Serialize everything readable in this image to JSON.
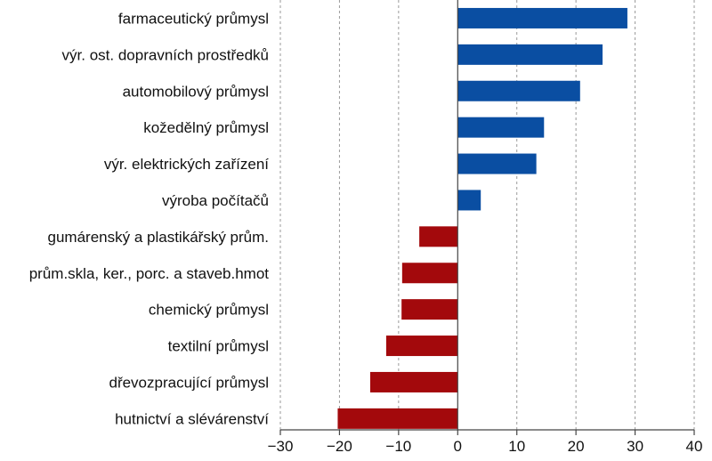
{
  "chart_data": {
    "type": "bar",
    "orientation": "horizontal",
    "categories": [
      "farmaceutický průmysl",
      "výr. ost. dopravních prostředků",
      "automobilový průmysl",
      "kožedělný průmysl",
      "výr. elektrických zařízení",
      "výroba počítačů",
      "gumárenský a plastikářský prům.",
      "prům.skla, ker., porc. a staveb.hmot",
      "chemický průmysl",
      "textilní průmysl",
      "dřevozpracující průmysl",
      "hutnictví a slévárenství"
    ],
    "values": [
      28.7,
      24.5,
      20.7,
      14.6,
      13.3,
      3.9,
      -6.5,
      -9.4,
      -9.5,
      -12.1,
      -14.8,
      -20.3
    ],
    "xlim": [
      -30,
      40
    ],
    "xticks": [
      -30,
      -20,
      -10,
      0,
      10,
      20,
      30,
      40
    ],
    "xtick_labels": [
      "−30",
      "−20",
      "−10",
      "0",
      "10",
      "20",
      "30",
      "40"
    ],
    "grid": "vertical dashed",
    "colors": {
      "positive": "#0a4ea2",
      "negative": "#a3090c"
    },
    "title": "",
    "xlabel": "",
    "ylabel": ""
  }
}
